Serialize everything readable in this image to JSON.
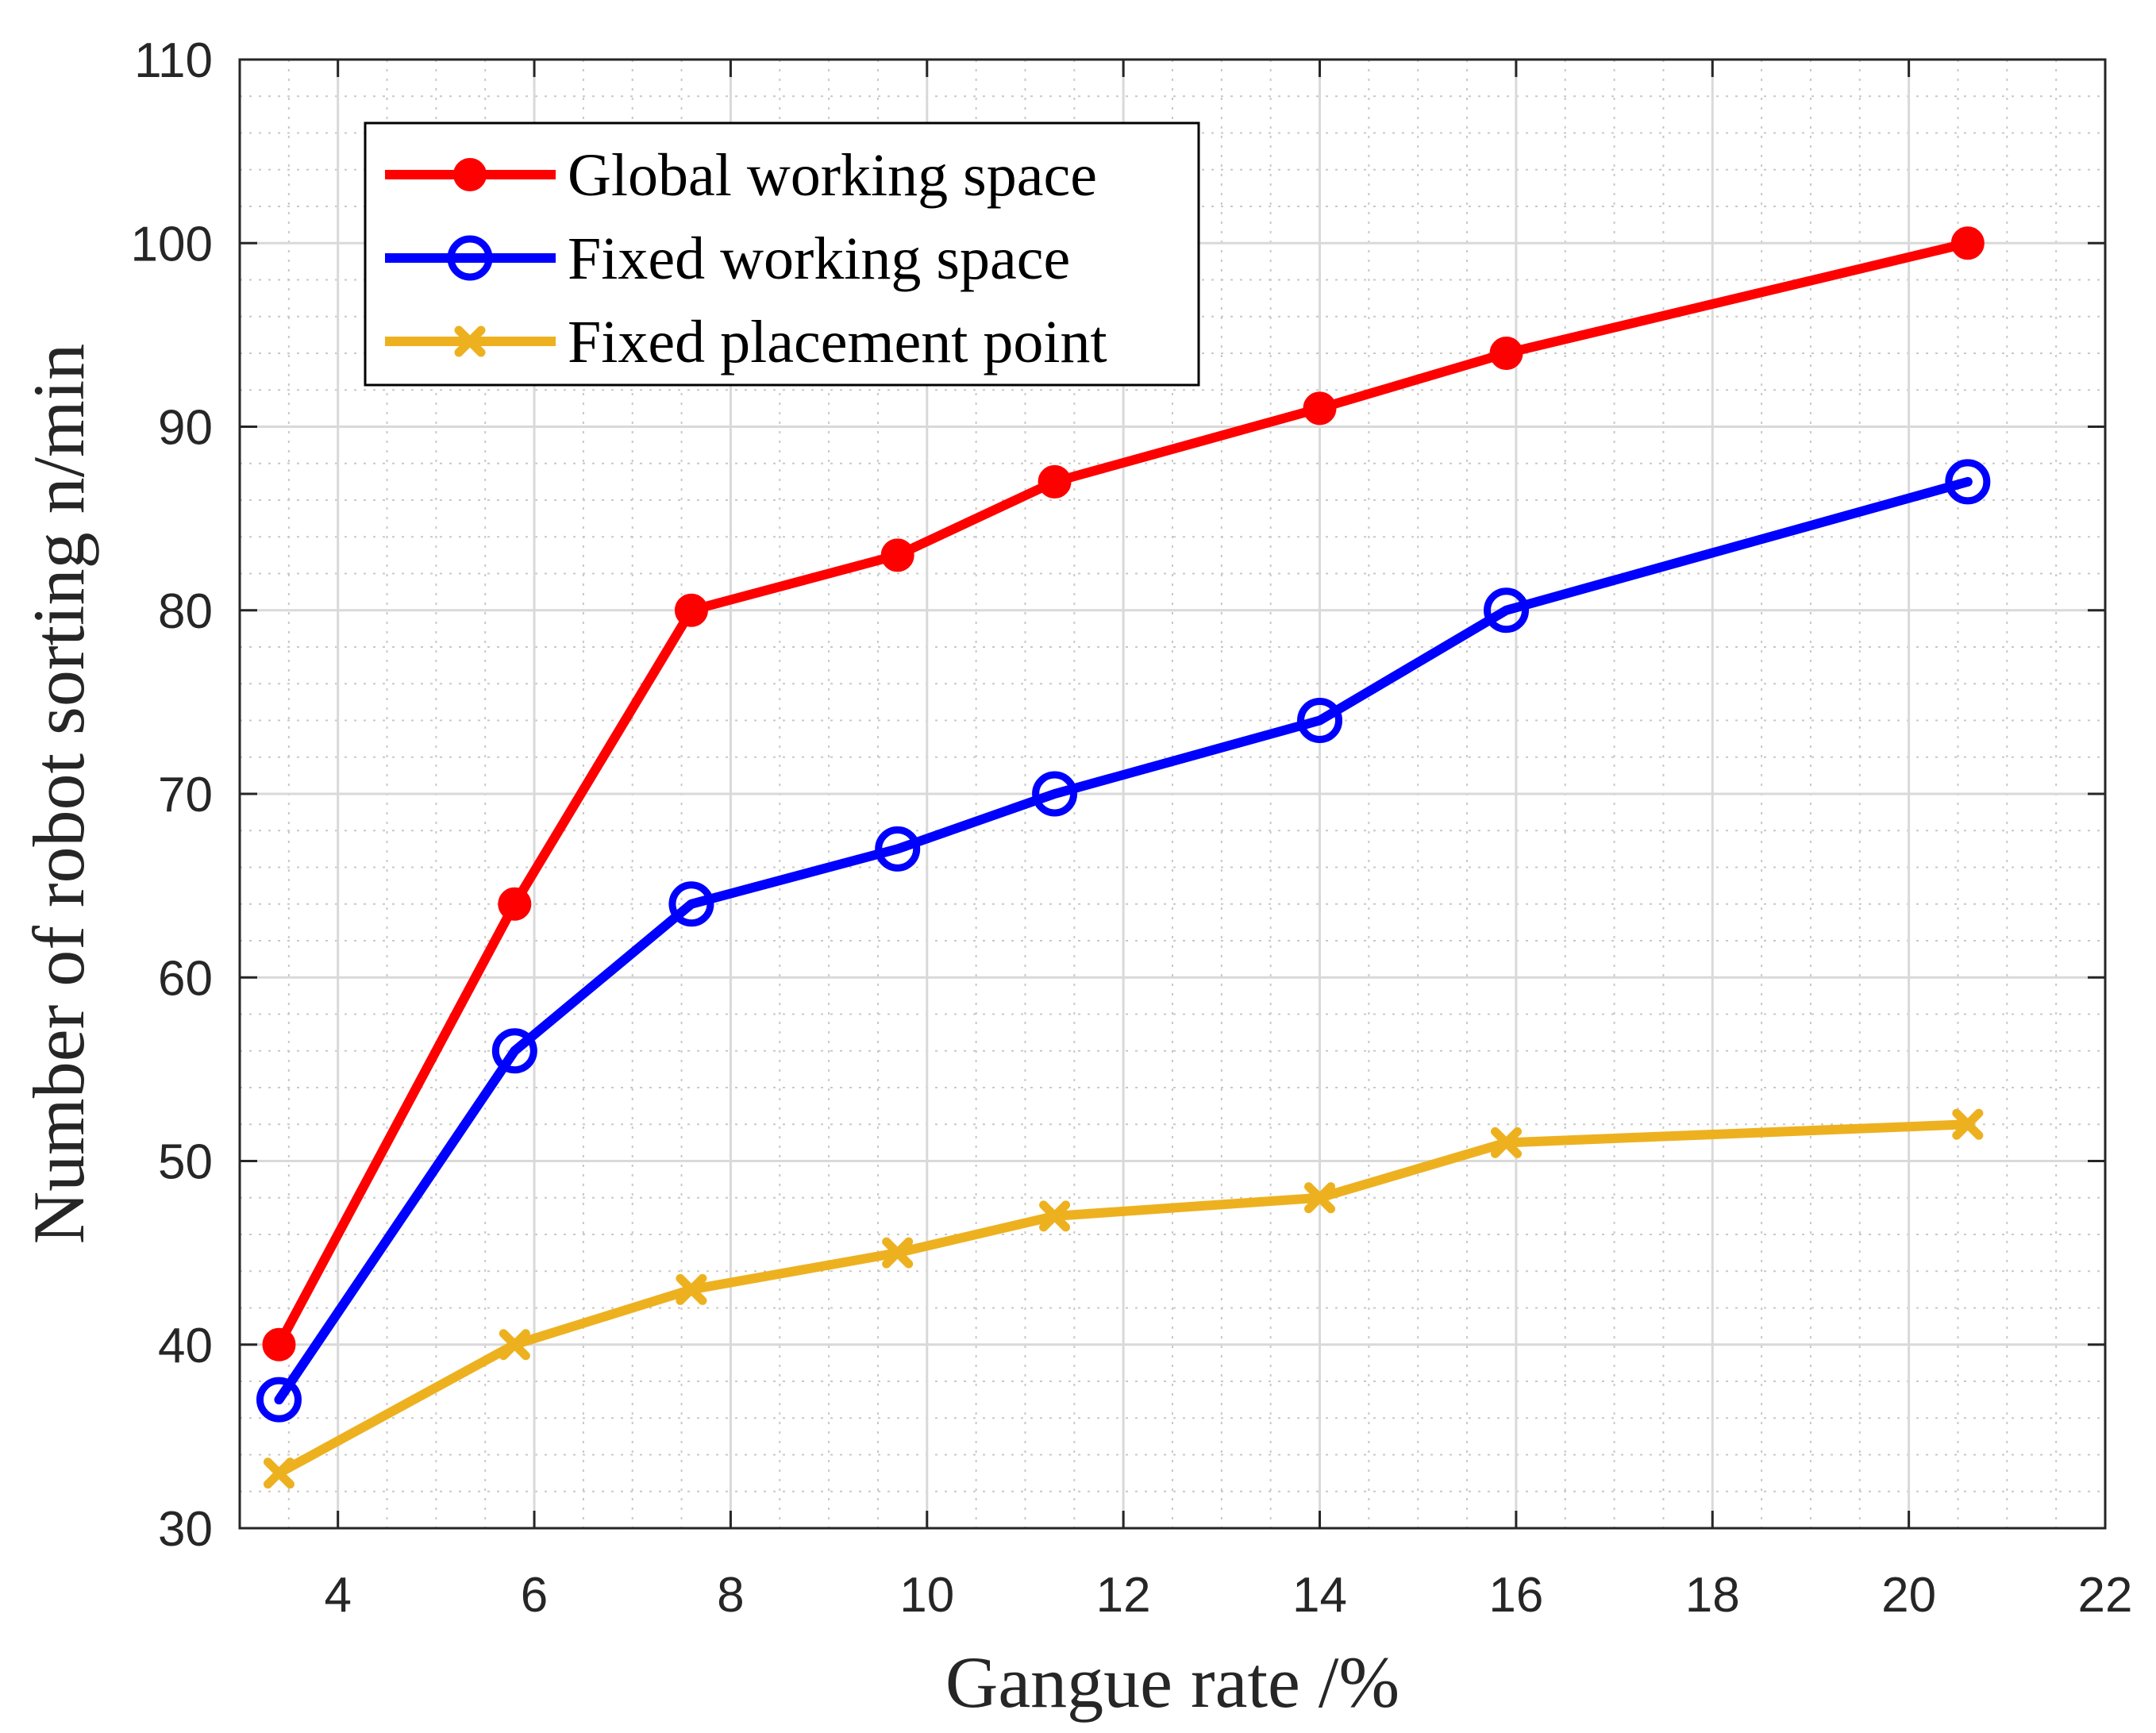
{
  "chart_data": {
    "type": "line",
    "xlabel": "Gangue rate /%",
    "ylabel": "Number of robot sorting  n/min",
    "xlim": [
      3,
      22
    ],
    "ylim": [
      30,
      110
    ],
    "xticks": [
      4,
      6,
      8,
      10,
      12,
      14,
      16,
      18,
      20,
      22
    ],
    "yticks": [
      30,
      40,
      50,
      60,
      70,
      80,
      90,
      100,
      110
    ],
    "xtick_labels": [
      "4",
      "6",
      "8",
      "10",
      "12",
      "14",
      "16",
      "18",
      "20",
      "22"
    ],
    "ytick_labels": [
      "30",
      "40",
      "50",
      "60",
      "70",
      "80",
      "90",
      "100",
      "110"
    ],
    "grid": true,
    "minor_grid": true,
    "legend_position": "top-left",
    "series": [
      {
        "name": "Global working space",
        "color": "#ff0000",
        "marker": "filled-circle",
        "x": [
          3.4,
          5.8,
          7.6,
          9.7,
          11.3,
          14.0,
          15.9,
          20.6
        ],
        "y": [
          40,
          64,
          80,
          83,
          87,
          91,
          94,
          100
        ]
      },
      {
        "name": "Fixed working space",
        "color": "#0000ff",
        "marker": "open-circle",
        "x": [
          3.4,
          5.8,
          7.6,
          9.7,
          11.3,
          14.0,
          15.9,
          20.6
        ],
        "y": [
          37,
          56,
          64,
          67,
          70,
          74,
          80,
          87
        ]
      },
      {
        "name": "Fixed placement point",
        "color": "#edb120",
        "marker": "x",
        "x": [
          3.4,
          5.8,
          7.6,
          9.7,
          11.3,
          14.0,
          15.9,
          20.6
        ],
        "y": [
          33,
          40,
          43,
          45,
          47,
          48,
          51,
          52
        ]
      }
    ]
  }
}
